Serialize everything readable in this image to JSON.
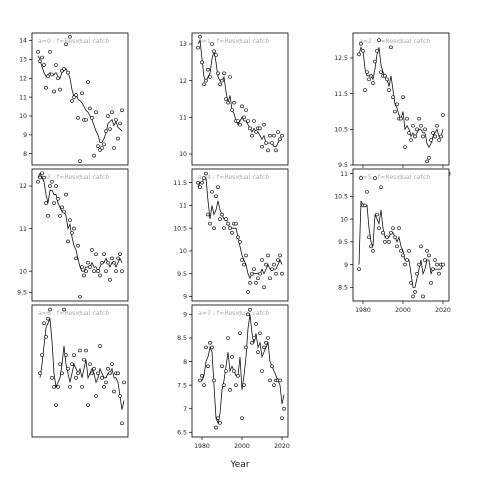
{
  "figure": {
    "xlabel": "Year"
  },
  "chart_data": [
    {
      "type": "scatter",
      "panel": "a=0",
      "title": "a=0 : f=Residual catch",
      "xlim": [
        1975,
        2023
      ],
      "ylim": [
        7.4,
        14.4
      ],
      "xticks": [],
      "yticks": [
        8,
        9,
        10,
        11,
        12,
        13,
        14
      ],
      "x": [
        1978,
        1979,
        1980,
        1981,
        1982,
        1983,
        1984,
        1985,
        1986,
        1987,
        1988,
        1989,
        1990,
        1991,
        1992,
        1993,
        1994,
        1995,
        1996,
        1997,
        1998,
        1999,
        2000,
        2001,
        2002,
        2003,
        2004,
        2005,
        2006,
        2007,
        2008,
        2009,
        2010,
        2011,
        2012,
        2013,
        2014,
        2015,
        2016,
        2017,
        2018,
        2019,
        2020
      ],
      "points": [
        13.4,
        12.9,
        13.1,
        12.7,
        11.5,
        12.1,
        13.4,
        12.2,
        11.3,
        12.7,
        12.0,
        11.4,
        12.4,
        12.5,
        13.8,
        12.3,
        14.2,
        10.8,
        11.0,
        11.1,
        9.9,
        7.6,
        11.2,
        9.8,
        9.8,
        11.8,
        10.4,
        9.9,
        7.9,
        10.2,
        8.4,
        8.2,
        8.3,
        8.5,
        9.2,
        10.0,
        9.3,
        10.2,
        8.3,
        9.8,
        8.8,
        9.6,
        10.3
      ],
      "fit": [
        13.2,
        13.0,
        12.6,
        12.3,
        12.1,
        12.2,
        12.3,
        12.2,
        12.2,
        12.3,
        12.1,
        12.0,
        12.3,
        12.4,
        12.5,
        12.3,
        12.0,
        11.4,
        11.0,
        11.2,
        10.9,
        10.8,
        10.7,
        10.5,
        10.3,
        10.2,
        10.0,
        9.8,
        9.5,
        9.2,
        9.0,
        8.6,
        8.6,
        8.8,
        9.1,
        9.6,
        9.7,
        9.8,
        9.5,
        9.7,
        9.4,
        9.3,
        9.2
      ]
    },
    {
      "type": "scatter",
      "panel": "a=3",
      "title": "a=3 : f=Residual catch",
      "xlim": [
        1975,
        2023
      ],
      "ylim": [
        9.3,
        12.4
      ],
      "xticks": [],
      "yticks": [
        9.5,
        10.0,
        11.0,
        12.0
      ],
      "x": [
        1978,
        1979,
        1980,
        1981,
        1982,
        1983,
        1984,
        1985,
        1986,
        1987,
        1988,
        1989,
        1990,
        1991,
        1992,
        1993,
        1994,
        1995,
        1996,
        1997,
        1998,
        1999,
        2000,
        2001,
        2002,
        2003,
        2004,
        2005,
        2006,
        2007,
        2008,
        2009,
        2010,
        2011,
        2012,
        2013,
        2014,
        2015,
        2016,
        2017,
        2018,
        2019,
        2020
      ],
      "points": [
        12.1,
        12.2,
        12.3,
        12.2,
        11.6,
        11.3,
        12.0,
        12.1,
        11.6,
        12.0,
        11.7,
        11.3,
        11.5,
        11.4,
        11.8,
        10.7,
        11.2,
        10.9,
        11.0,
        10.3,
        10.6,
        9.4,
        10.1,
        9.9,
        10.0,
        10.2,
        10.1,
        10.5,
        10.0,
        10.4,
        10.0,
        9.9,
        10.2,
        10.4,
        10.0,
        10.2,
        9.8,
        10.3,
        10.2,
        10.0,
        10.3,
        10.4,
        10.0
      ],
      "fit": [
        12.2,
        12.3,
        12.2,
        12.1,
        11.8,
        11.6,
        11.9,
        11.9,
        11.8,
        11.8,
        11.6,
        11.5,
        11.4,
        11.4,
        11.3,
        11.0,
        11.1,
        10.8,
        10.6,
        10.5,
        10.3,
        10.1,
        10.0,
        10.0,
        10.1,
        10.1,
        10.1,
        10.2,
        10.1,
        10.1,
        10.0,
        10.1,
        10.2,
        10.2,
        10.3,
        10.2,
        10.1,
        10.2,
        10.2,
        10.1,
        10.2,
        10.3,
        10.2
      ]
    },
    {
      "type": "scatter",
      "panel": "a=6",
      "title": "a=6 : f=Residual catch",
      "xlim": [
        1975,
        2023
      ],
      "ylim": [
        8.7,
        11.6
      ],
      "xticks": [],
      "yticks": [],
      "x": [
        1979,
        1980,
        1981,
        1982,
        1983,
        1984,
        1985,
        1986,
        1987,
        1988,
        1989,
        1990,
        1991,
        1992,
        1993,
        1994,
        1995,
        1996,
        1997,
        1998,
        1999,
        2000,
        2001,
        2002,
        2003,
        2004,
        2005,
        2006,
        2007,
        2008,
        2009,
        2010,
        2011,
        2012,
        2013,
        2014,
        2015,
        2016,
        2017,
        2018,
        2019,
        2020,
        2021
      ],
      "points": [
        10.1,
        10.5,
        11.2,
        10.9,
        11.3,
        11.5,
        10.0,
        9.8,
        9.4,
        9.8,
        10.3,
        10.1,
        11.5,
        10.5,
        10.2,
        9.8,
        10.3,
        10.5,
        10.0,
        10.1,
        10.6,
        9.8,
        10.4,
        10.6,
        9.4,
        10.3,
        10.1,
        10.2,
        9.6,
        10.1,
        10.7,
        10.0,
        9.8,
        9.9,
        10.2,
        10.1,
        10.3,
        9.7,
        10.1,
        10.1,
        9.6,
        9.0,
        9.9
      ],
      "fit": [
        10.0,
        10.3,
        10.7,
        11.1,
        11.2,
        11.3,
        10.8,
        10.1,
        9.8,
        9.9,
        10.0,
        10.3,
        10.7,
        10.3,
        10.1,
        9.9,
        10.1,
        10.3,
        10.2,
        10.1,
        10.2,
        10.0,
        10.2,
        10.4,
        10.0,
        10.1,
        10.2,
        10.1,
        9.9,
        10.0,
        10.2,
        10.1,
        10.0,
        10.0,
        10.1,
        10.1,
        10.2,
        10.0,
        10.0,
        9.9,
        9.6,
        9.3,
        9.5
      ]
    },
    {
      "type": "scatter",
      "panel": "a=1",
      "title": "a=1 : f=Residual catch",
      "xlim": [
        1975,
        2023
      ],
      "ylim": [
        9.7,
        13.3
      ],
      "xticks": [],
      "yticks": [
        10.0,
        11.0,
        12.0,
        13.0
      ],
      "x": [
        1978,
        1979,
        1980,
        1981,
        1982,
        1983,
        1984,
        1985,
        1986,
        1987,
        1988,
        1989,
        1990,
        1991,
        1992,
        1993,
        1994,
        1995,
        1996,
        1997,
        1998,
        1999,
        2000,
        2001,
        2002,
        2003,
        2004,
        2005,
        2006,
        2007,
        2008,
        2009,
        2010,
        2011,
        2012,
        2013,
        2014,
        2015,
        2016,
        2017,
        2018,
        2019,
        2020
      ],
      "points": [
        12.9,
        13.2,
        12.5,
        11.9,
        12.0,
        12.3,
        12.1,
        13.0,
        12.8,
        12.7,
        12.2,
        11.9,
        12.0,
        12.2,
        11.5,
        11.4,
        12.1,
        11.2,
        11.4,
        10.9,
        10.9,
        10.8,
        11.3,
        11.0,
        11.2,
        10.9,
        10.7,
        10.5,
        10.9,
        10.6,
        10.7,
        10.7,
        10.2,
        10.8,
        10.3,
        10.1,
        10.5,
        10.3,
        10.5,
        10.1,
        10.6,
        10.4,
        10.5
      ],
      "fit": [
        13.0,
        13.1,
        12.6,
        12.1,
        12.0,
        12.1,
        12.2,
        12.6,
        12.8,
        12.5,
        12.1,
        12.0,
        12.0,
        12.1,
        11.7,
        11.4,
        11.6,
        11.2,
        11.1,
        10.9,
        10.8,
        10.9,
        11.0,
        10.9,
        10.9,
        10.8,
        10.7,
        10.6,
        10.7,
        10.6,
        10.6,
        10.5,
        10.4,
        10.5,
        10.3,
        10.3,
        10.3,
        10.3,
        10.2,
        10.2,
        10.3,
        10.4,
        10.4
      ]
    },
    {
      "type": "scatter",
      "panel": "a=4",
      "title": "a=4 : f=Residual catch",
      "xlim": [
        1975,
        2023
      ],
      "ylim": [
        8.9,
        11.8
      ],
      "xticks": [],
      "yticks": [
        9.0,
        9.5,
        10.0,
        10.5,
        11.0,
        11.5
      ],
      "x": [
        1978,
        1979,
        1980,
        1981,
        1982,
        1983,
        1984,
        1985,
        1986,
        1987,
        1988,
        1989,
        1990,
        1991,
        1992,
        1993,
        1994,
        1995,
        1996,
        1997,
        1998,
        1999,
        2000,
        2001,
        2002,
        2003,
        2004,
        2005,
        2006,
        2007,
        2008,
        2009,
        2010,
        2011,
        2012,
        2013,
        2014,
        2015,
        2016,
        2017,
        2018,
        2019,
        2020
      ],
      "points": [
        11.5,
        11.4,
        11.5,
        11.6,
        11.7,
        10.8,
        10.6,
        11.3,
        10.5,
        11.2,
        11.4,
        10.7,
        10.8,
        10.5,
        10.7,
        10.6,
        10.5,
        10.4,
        10.6,
        10.6,
        10.3,
        10.2,
        9.8,
        9.7,
        9.9,
        9.1,
        9.3,
        9.5,
        9.6,
        9.3,
        9.4,
        9.5,
        9.8,
        9.2,
        9.7,
        9.9,
        9.4,
        9.6,
        9.7,
        9.5,
        9.8,
        9.9,
        9.5
      ],
      "fit": [
        11.4,
        11.5,
        11.5,
        11.6,
        11.6,
        11.1,
        10.7,
        11.0,
        10.8,
        10.9,
        11.1,
        10.9,
        10.8,
        10.7,
        10.7,
        10.6,
        10.5,
        10.5,
        10.5,
        10.5,
        10.3,
        10.1,
        9.9,
        9.8,
        9.7,
        9.5,
        9.4,
        9.5,
        9.5,
        9.5,
        9.5,
        9.5,
        9.6,
        9.5,
        9.6,
        9.7,
        9.6,
        9.6,
        9.6,
        9.6,
        9.7,
        9.8,
        9.7
      ]
    },
    {
      "type": "scatter",
      "panel": "a=7",
      "title": "a=7 : f=Residual catch",
      "xlim": [
        1975,
        2023
      ],
      "ylim": [
        6.4,
        9.2
      ],
      "xticks": [
        1980,
        2000,
        2020
      ],
      "yticks": [
        6.5,
        7.0,
        7.5,
        8.0,
        8.5,
        9.0
      ],
      "x": [
        1979,
        1980,
        1981,
        1982,
        1983,
        1984,
        1985,
        1986,
        1987,
        1988,
        1989,
        1990,
        1991,
        1992,
        1993,
        1994,
        1995,
        1996,
        1997,
        1998,
        1999,
        2000,
        2001,
        2002,
        2003,
        2004,
        2005,
        2006,
        2007,
        2008,
        2009,
        2010,
        2011,
        2012,
        2013,
        2014,
        2015,
        2016,
        2017,
        2018,
        2019,
        2020,
        2021
      ],
      "points": [
        7.6,
        7.7,
        7.5,
        8.3,
        7.9,
        8.4,
        8.3,
        7.6,
        6.6,
        6.8,
        6.7,
        7.9,
        7.5,
        7.8,
        8.5,
        7.4,
        8.1,
        7.8,
        7.5,
        7.7,
        8.6,
        6.8,
        7.5,
        8.3,
        9.0,
        9.1,
        8.4,
        8.5,
        8.8,
        8.2,
        8.6,
        7.8,
        8.3,
        8.4,
        8.5,
        7.6,
        7.9,
        7.5,
        7.6,
        7.6,
        7.6,
        6.8,
        7.0
      ],
      "fit": [
        7.6,
        7.6,
        7.7,
        8.0,
        8.1,
        8.3,
        8.2,
        7.5,
        6.8,
        6.7,
        6.9,
        7.4,
        7.6,
        7.9,
        8.2,
        7.8,
        7.9,
        7.8,
        7.7,
        7.7,
        8.1,
        7.4,
        7.7,
        8.1,
        8.7,
        9.0,
        8.6,
        8.4,
        8.6,
        8.3,
        8.4,
        8.1,
        8.2,
        8.3,
        8.4,
        8.0,
        7.9,
        7.8,
        7.7,
        7.6,
        7.5,
        7.1,
        7.3
      ]
    },
    {
      "type": "scatter",
      "panel": "a=2",
      "title": "a=2 : f=Residual catch",
      "xlim": [
        1975,
        2023
      ],
      "ylim": [
        9.5,
        13.2
      ],
      "xticks": [
        1980,
        2000,
        2020
      ],
      "yticks": [
        9.5,
        10.5,
        11.5,
        12.5
      ],
      "x": [
        1978,
        1979,
        1980,
        1981,
        1982,
        1983,
        1984,
        1985,
        1986,
        1987,
        1988,
        1989,
        1990,
        1991,
        1992,
        1993,
        1994,
        1995,
        1996,
        1997,
        1998,
        1999,
        2000,
        2001,
        2002,
        2003,
        2004,
        2005,
        2006,
        2007,
        2008,
        2009,
        2010,
        2011,
        2012,
        2013,
        2014,
        2015,
        2016,
        2017,
        2018,
        2019,
        2020
      ],
      "points": [
        12.6,
        12.9,
        12.7,
        11.6,
        12.1,
        11.9,
        12.0,
        11.8,
        12.4,
        12.7,
        13.0,
        12.1,
        12.0,
        12.0,
        11.9,
        11.6,
        12.8,
        11.4,
        11.0,
        11.2,
        10.8,
        10.8,
        11.4,
        10.0,
        10.8,
        10.4,
        10.2,
        10.6,
        10.3,
        10.5,
        10.8,
        10.6,
        10.3,
        10.5,
        9.6,
        9.7,
        10.2,
        10.4,
        10.3,
        10.6,
        10.2,
        10.3,
        10.9
      ],
      "fit": [
        12.6,
        12.8,
        12.7,
        12.2,
        12.0,
        12.0,
        12.0,
        11.9,
        12.2,
        12.6,
        12.8,
        12.3,
        12.1,
        12.0,
        11.9,
        11.7,
        12.0,
        11.6,
        11.2,
        11.1,
        10.9,
        10.8,
        11.0,
        10.5,
        10.6,
        10.5,
        10.3,
        10.4,
        10.3,
        10.4,
        10.5,
        10.5,
        10.4,
        10.4,
        10.1,
        10.0,
        10.1,
        10.3,
        10.4,
        10.5,
        10.3,
        10.3,
        10.5
      ]
    },
    {
      "type": "scatter",
      "panel": "a=5",
      "title": "a=5 : f=Residual catch",
      "xlim": [
        1975,
        2023
      ],
      "ylim": [
        8.2,
        11.1
      ],
      "xticks": [
        1980,
        2000,
        2020
      ],
      "yticks": [
        8.5,
        9.0,
        9.5,
        10.0,
        10.5,
        11.0
      ],
      "x": [
        1978,
        1979,
        1980,
        1981,
        1982,
        1983,
        1984,
        1985,
        1986,
        1987,
        1988,
        1989,
        1990,
        1991,
        1992,
        1993,
        1994,
        1995,
        1996,
        1997,
        1998,
        1999,
        2000,
        2001,
        2002,
        2003,
        2004,
        2005,
        2006,
        2007,
        2008,
        2009,
        2010,
        2011,
        2012,
        2013,
        2014,
        2015,
        2016,
        2017,
        2018,
        2019,
        2020
      ],
      "points": [
        8.9,
        10.9,
        10.3,
        10.3,
        10.6,
        9.6,
        9.4,
        9.3,
        10.9,
        10.1,
        9.8,
        10.7,
        9.7,
        9.5,
        9.6,
        9.5,
        9.7,
        9.8,
        9.6,
        9.4,
        9.8,
        9.3,
        9.2,
        9.0,
        9.1,
        9.3,
        8.6,
        8.3,
        8.4,
        8.8,
        9.0,
        9.4,
        8.3,
        9.1,
        9.3,
        9.2,
        8.6,
        8.9,
        9.1,
        9.0,
        8.8,
        9.0,
        9.0
      ],
      "fit": [
        9.0,
        10.4,
        10.3,
        10.3,
        10.3,
        9.8,
        9.5,
        9.4,
        10.1,
        10.0,
        9.9,
        10.2,
        9.8,
        9.6,
        9.6,
        9.6,
        9.7,
        9.7,
        9.6,
        9.5,
        9.6,
        9.4,
        9.3,
        9.1,
        9.1,
        9.1,
        8.8,
        8.5,
        8.5,
        8.7,
        8.9,
        9.1,
        8.8,
        8.9,
        9.1,
        9.1,
        8.8,
        8.9,
        8.9,
        8.9,
        8.9,
        8.9,
        9.0
      ]
    }
  ]
}
